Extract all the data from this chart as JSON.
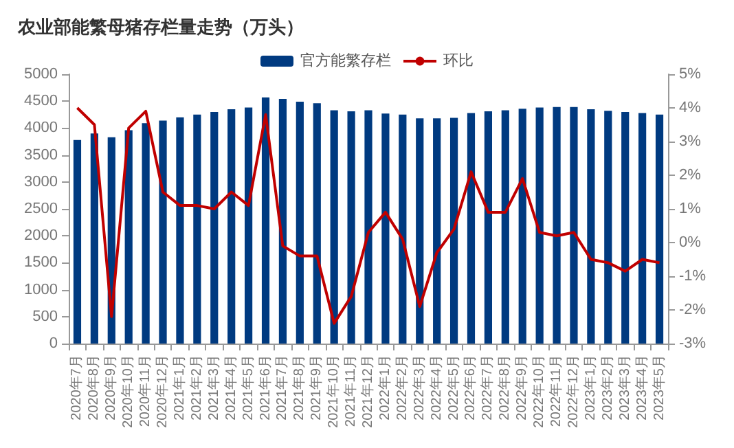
{
  "chart_data": {
    "type": "bar",
    "title": "农业部能繁母猪存栏量走势（万头）",
    "categories": [
      "2020年7月",
      "2020年8月",
      "2020年9月",
      "2020年10月",
      "2020年11月",
      "2020年12月",
      "2021年1月",
      "2021年2月",
      "2021年3月",
      "2021年4月",
      "2021年5月",
      "2021年6月",
      "2021年7月",
      "2021年8月",
      "2021年9月",
      "2021年10月",
      "2021年11月",
      "2021年12月",
      "2022年1月",
      "2022年2月",
      "2022年3月",
      "2022年4月",
      "2022年5月",
      "2022年6月",
      "2022年7月",
      "2022年8月",
      "2022年9月",
      "2022年10月",
      "2022年11月",
      "2022年12月",
      "2023年1月",
      "2023年2月",
      "2023年3月",
      "2023年4月",
      "2023年5月"
    ],
    "series": [
      {
        "name": "官方能繁存栏",
        "color": "#003a80",
        "values": [
          3780,
          3900,
          3830,
          3960,
          4090,
          4140,
          4200,
          4250,
          4300,
          4350,
          4380,
          4570,
          4540,
          4490,
          4460,
          4330,
          4310,
          4330,
          4270,
          4250,
          4180,
          4180,
          4190,
          4280,
          4310,
          4330,
          4360,
          4380,
          4390,
          4390,
          4350,
          4320,
          4300,
          4280,
          4250
        ]
      },
      {
        "name": "环比",
        "type": "line",
        "axis": "y2",
        "color": "#c00000",
        "values": [
          4.0,
          3.5,
          -2.2,
          3.4,
          3.9,
          1.5,
          1.1,
          1.1,
          1.0,
          1.5,
          1.1,
          3.8,
          -0.1,
          -0.4,
          -0.4,
          -2.4,
          -1.6,
          0.3,
          0.9,
          0.1,
          -1.9,
          -0.3,
          0.4,
          2.1,
          0.9,
          0.9,
          1.9,
          0.3,
          0.2,
          0.3,
          -0.5,
          -0.6,
          -0.85,
          -0.5,
          -0.6
        ]
      }
    ],
    "ylim": [
      0,
      5000
    ],
    "yticks": [
      0,
      500,
      1000,
      1500,
      2000,
      2500,
      3000,
      3500,
      4000,
      4500,
      5000
    ],
    "y2lim": [
      -3,
      5
    ],
    "y2ticks": [
      {
        "value": -3,
        "label": "-3%"
      },
      {
        "value": -2,
        "label": "-2%"
      },
      {
        "value": -1,
        "label": "-1%"
      },
      {
        "value": 0,
        "label": "0%"
      },
      {
        "value": 1,
        "label": "1%"
      },
      {
        "value": 2,
        "label": "2%"
      },
      {
        "value": 3,
        "label": "3%"
      },
      {
        "value": 4,
        "label": "4%"
      },
      {
        "value": 5,
        "label": "5%"
      }
    ],
    "legend": "top",
    "grid": false,
    "marker": "none"
  }
}
